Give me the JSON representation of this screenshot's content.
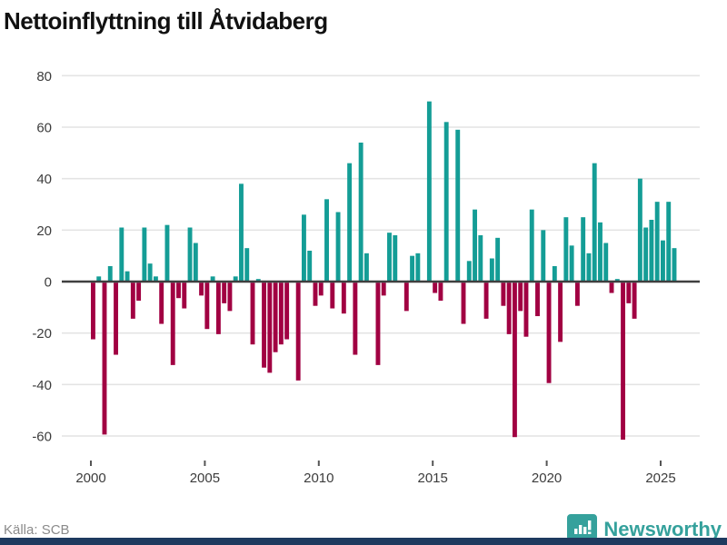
{
  "title": "Nettoinflyttning till Åtvidaberg",
  "source_label": "Källa: SCB",
  "brand": {
    "name": "Newsworthy",
    "color": "#35a19c"
  },
  "colors": {
    "positive": "#149d96",
    "negative": "#a10042",
    "gridline": "#e4e4e4",
    "zero_line": "#3f3f3f",
    "axis_text": "#3c3c3c",
    "bottom_bar": "#1e3a5f"
  },
  "chart_data": {
    "type": "bar",
    "title": "Nettoinflyttning till Åtvidaberg",
    "xlabel": "",
    "ylabel": "",
    "ylim": [
      -60,
      80
    ],
    "y_ticks": [
      80,
      60,
      40,
      20,
      0,
      -20,
      -40,
      -60
    ],
    "x_ticks": [
      "2000",
      "2005",
      "2010",
      "2015",
      "2020",
      "2025"
    ],
    "grid": "horizontal",
    "legend": "none",
    "frequency": "quarterly",
    "start": "2000 Q1",
    "end": "2025 Q3",
    "quarters": [
      "2000 Q1",
      "2000 Q2",
      "2000 Q3",
      "2000 Q4",
      "2001 Q1",
      "2001 Q2",
      "2001 Q3",
      "2001 Q4",
      "2002 Q1",
      "2002 Q2",
      "2002 Q3",
      "2002 Q4",
      "2003 Q1",
      "2003 Q2",
      "2003 Q3",
      "2003 Q4",
      "2004 Q1",
      "2004 Q2",
      "2004 Q3",
      "2004 Q4",
      "2005 Q1",
      "2005 Q2",
      "2005 Q3",
      "2005 Q4",
      "2006 Q1",
      "2006 Q2",
      "2006 Q3",
      "2006 Q4",
      "2007 Q1",
      "2007 Q2",
      "2007 Q3",
      "2007 Q4",
      "2008 Q1",
      "2008 Q2",
      "2008 Q3",
      "2008 Q4",
      "2009 Q1",
      "2009 Q2",
      "2009 Q3",
      "2009 Q4",
      "2010 Q1",
      "2010 Q2",
      "2010 Q3",
      "2010 Q4",
      "2011 Q1",
      "2011 Q2",
      "2011 Q3",
      "2011 Q4",
      "2012 Q1",
      "2012 Q2",
      "2012 Q3",
      "2012 Q4",
      "2013 Q1",
      "2013 Q2",
      "2013 Q3",
      "2013 Q4",
      "2014 Q1",
      "2014 Q2",
      "2014 Q3",
      "2014 Q4",
      "2015 Q1",
      "2015 Q2",
      "2015 Q3",
      "2015 Q4",
      "2016 Q1",
      "2016 Q2",
      "2016 Q3",
      "2016 Q4",
      "2017 Q1",
      "2017 Q2",
      "2017 Q3",
      "2017 Q4",
      "2018 Q1",
      "2018 Q2",
      "2018 Q3",
      "2018 Q4",
      "2019 Q1",
      "2019 Q2",
      "2019 Q3",
      "2019 Q4",
      "2020 Q1",
      "2020 Q2",
      "2020 Q3",
      "2020 Q4",
      "2021 Q1",
      "2021 Q2",
      "2021 Q3",
      "2021 Q4",
      "2022 Q1",
      "2022 Q2",
      "2022 Q3",
      "2022 Q4",
      "2023 Q1",
      "2023 Q2",
      "2023 Q3",
      "2023 Q4",
      "2024 Q1",
      "2024 Q2",
      "2024 Q3",
      "2024 Q4",
      "2025 Q1",
      "2025 Q2",
      "2025 Q3"
    ],
    "values": [
      -22,
      2,
      -59,
      6,
      -28,
      21,
      4,
      -14,
      -7,
      21,
      7,
      2,
      -16,
      22,
      -32,
      -6,
      -10,
      21,
      15,
      -5,
      -18,
      2,
      -20,
      -8,
      -11,
      2,
      38,
      13,
      -24,
      1,
      -33,
      -35,
      -27,
      -24,
      -22,
      0,
      -38,
      26,
      12,
      -9,
      -5,
      32,
      -10,
      27,
      -12,
      46,
      -28,
      54,
      11,
      0,
      -32,
      -5,
      19,
      18,
      0,
      -11,
      10,
      11,
      0,
      70,
      -4,
      -7,
      62,
      0,
      59,
      -16,
      8,
      28,
      18,
      -14,
      9,
      17,
      -9,
      -20,
      -60,
      -11,
      -21,
      28,
      -13,
      20,
      -39,
      6,
      -23,
      25,
      14,
      -9,
      25,
      11,
      46,
      23,
      15,
      -4,
      1,
      -61,
      -8,
      -14,
      40,
      21,
      24,
      31,
      16,
      31,
      13
    ]
  }
}
